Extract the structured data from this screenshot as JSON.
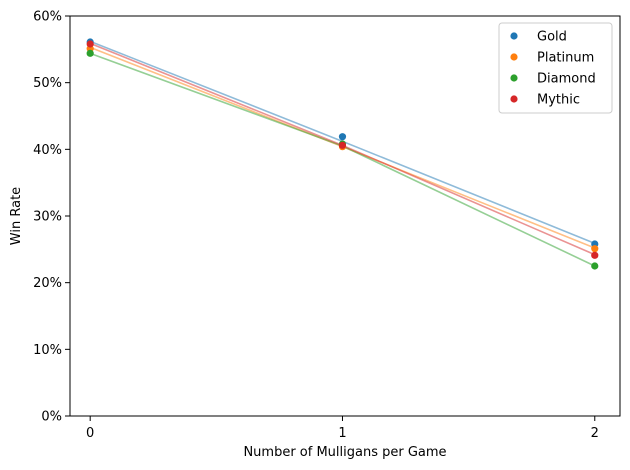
{
  "chart_data": {
    "type": "scatter",
    "title": "",
    "xlabel": "Number of Mulligans per Game",
    "ylabel": "Win Rate",
    "x": [
      0,
      1,
      2
    ],
    "x_tick_labels": [
      "0",
      "1",
      "2"
    ],
    "xlim": [
      -0.08,
      2.1
    ],
    "ylim": [
      0,
      0.6
    ],
    "y_ticks": [
      0,
      0.1,
      0.2,
      0.3,
      0.4,
      0.5,
      0.6
    ],
    "y_tick_labels": [
      "0%",
      "10%",
      "20%",
      "30%",
      "40%",
      "50%",
      "60%"
    ],
    "grid": false,
    "legend_position": "top-right",
    "trend_lines": true,
    "series": [
      {
        "name": "Gold",
        "color": "#1f77b4",
        "values": [
          0.561,
          0.419,
          0.258
        ],
        "trend": [
          0.562,
          0.412,
          0.259
        ]
      },
      {
        "name": "Platinum",
        "color": "#ff7f0e",
        "values": [
          0.551,
          0.404,
          0.251
        ],
        "trend": [
          0.553,
          0.404,
          0.252
        ]
      },
      {
        "name": "Diamond",
        "color": "#2ca02c",
        "values": [
          0.544,
          0.408,
          0.225
        ],
        "trend": [
          0.544,
          0.405,
          0.225
        ]
      },
      {
        "name": "Mythic",
        "color": "#d62728",
        "values": [
          0.558,
          0.406,
          0.241
        ],
        "trend": [
          0.559,
          0.406,
          0.242
        ]
      }
    ]
  }
}
